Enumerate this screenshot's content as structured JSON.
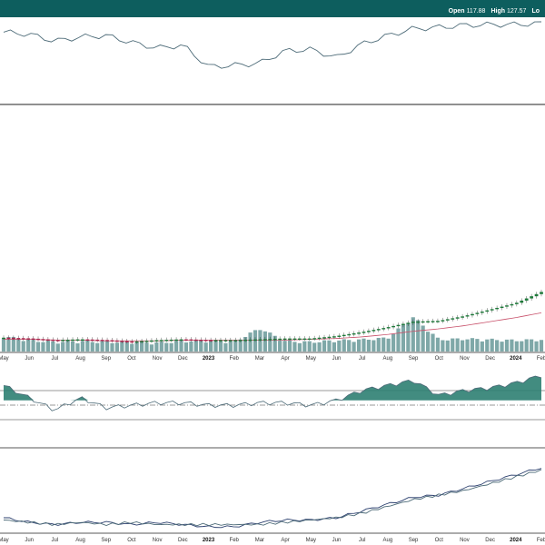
{
  "header": {
    "open_label": "Open",
    "open_value": "117.88",
    "high_label": "High",
    "high_value": "127.57",
    "low_label": "Lo"
  },
  "colors": {
    "header_bg": "#0d5e5e",
    "line": "#4d6b78",
    "up_candle": "#1e7a3a",
    "down_candle": "#b0264f",
    "volume": "#7fa8a8",
    "ma": "#c8506a",
    "fill": "#2e7f72",
    "compare": "#2b3f6e"
  },
  "x_axis": {
    "months": [
      "May",
      "Jun",
      "Jul",
      "Aug",
      "Sep",
      "Oct",
      "Nov",
      "Dec",
      "2023",
      "Feb",
      "Mar",
      "Apr",
      "May",
      "Jun",
      "Jul",
      "Aug",
      "Sep",
      "Oct",
      "Nov",
      "Dec",
      "2024",
      "Feb"
    ],
    "bold_labels": [
      "2023",
      "2024"
    ]
  },
  "chart_data": [
    {
      "type": "line",
      "panel": "top-indicator",
      "x": [
        "May",
        "Jun",
        "Jul",
        "Aug",
        "Sep",
        "Oct",
        "Nov",
        "Dec",
        "2023",
        "Feb",
        "Mar",
        "Apr",
        "May",
        "Jun",
        "Jul",
        "Aug",
        "Sep",
        "Oct",
        "Nov",
        "Dec",
        "2024",
        "Feb"
      ],
      "values": [
        85,
        82,
        72,
        78,
        80,
        70,
        62,
        66,
        35,
        37,
        40,
        58,
        60,
        48,
        68,
        80,
        90,
        92,
        95,
        96,
        96,
        98
      ],
      "ylim": [
        0,
        100
      ]
    },
    {
      "type": "candlestick",
      "panel": "price",
      "x": [
        "May",
        "Jun",
        "Jul",
        "Aug",
        "Sep",
        "Oct",
        "Nov",
        "Dec",
        "2023",
        "Feb",
        "Mar",
        "Apr",
        "May",
        "Jun",
        "Jul",
        "Aug",
        "Sep",
        "Oct",
        "Nov",
        "Dec",
        "2024",
        "Feb"
      ],
      "series": [
        {
          "values": [
            15,
            14,
            12,
            13,
            12,
            10,
            12,
            13,
            12,
            12,
            13,
            14,
            14,
            17,
            22,
            28,
            35,
            36,
            42,
            50,
            58,
            72
          ]
        },
        {
          "values": [
            13,
            13,
            12,
            12,
            11,
            11,
            11,
            12,
            12,
            12,
            12,
            12,
            13,
            14,
            16,
            19,
            23,
            26,
            30,
            35,
            40,
            46
          ]
        }
      ],
      "ylim": [
        0,
        300
      ]
    },
    {
      "type": "bar",
      "panel": "volume",
      "categories": [
        "May",
        "Jun",
        "Jul",
        "Aug",
        "Sep",
        "Oct",
        "Nov",
        "Dec",
        "2023",
        "Feb",
        "Mar",
        "Apr",
        "May",
        "Jun",
        "Jul",
        "Aug",
        "Sep",
        "Oct",
        "Nov",
        "Dec",
        "2024",
        "Feb"
      ],
      "values": [
        16,
        11,
        9,
        10,
        9,
        9,
        8,
        10,
        11,
        9,
        26,
        10,
        9,
        11,
        12,
        14,
        40,
        12,
        13,
        12,
        11,
        12
      ],
      "ylim": [
        0,
        45
      ]
    },
    {
      "type": "area",
      "panel": "middle-indicator",
      "x": [
        "May",
        "Jun",
        "Jul",
        "Aug",
        "Sep",
        "Oct",
        "Nov",
        "Dec",
        "2023",
        "Feb",
        "Mar",
        "Apr",
        "May",
        "Jun",
        "Jul",
        "Aug",
        "Sep",
        "Oct",
        "Nov",
        "Dec",
        "2024",
        "Feb"
      ],
      "values": [
        6,
        1,
        -4,
        1,
        -3,
        -2,
        -1,
        -1,
        -2,
        -2,
        -1,
        -1,
        -2,
        0,
        4,
        6,
        8,
        2,
        4,
        5,
        7,
        10
      ],
      "ylim": [
        -10,
        12
      ]
    },
    {
      "type": "line",
      "panel": "bottom-comparison",
      "x": [
        "May",
        "Jun",
        "Jul",
        "Aug",
        "Sep",
        "Oct",
        "Nov",
        "Dec",
        "2023",
        "Feb",
        "Mar",
        "Apr",
        "May",
        "Jun",
        "Jul",
        "Aug",
        "Sep",
        "Oct",
        "Nov",
        "Dec",
        "2024",
        "Feb"
      ],
      "series": [
        {
          "values": [
            6,
            4,
            3,
            4,
            4,
            3,
            4,
            3,
            2,
            2,
            4,
            5,
            5,
            6,
            9,
            12,
            15,
            16,
            19,
            22,
            25,
            28
          ]
        },
        {
          "values": [
            5,
            4,
            3,
            4,
            3,
            4,
            3,
            3,
            3,
            3,
            3,
            4,
            5,
            6,
            8,
            11,
            14,
            16,
            18,
            21,
            24,
            27
          ]
        }
      ],
      "ylim": [
        0,
        30
      ]
    }
  ]
}
